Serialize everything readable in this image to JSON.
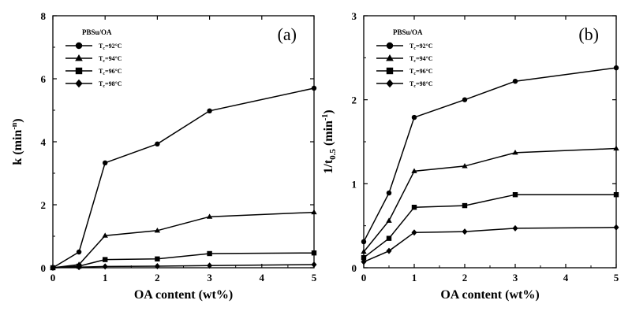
{
  "chart_data": [
    {
      "type": "line",
      "panel_label": "(a)",
      "xlabel": "OA content (wt%)",
      "ylabel": "k (min",
      "ylabel_sup": "-n",
      "ylabel_tail": ")",
      "xlim": [
        0,
        5
      ],
      "ylim": [
        0,
        8
      ],
      "xticks": [
        0,
        1,
        2,
        3,
        4,
        5
      ],
      "yticks": [
        0,
        2,
        4,
        6,
        8
      ],
      "legend_title": "PBSu/OA",
      "legend_position": "top-left",
      "x": [
        0,
        0.5,
        1,
        2,
        3,
        5
      ],
      "series": [
        {
          "name": "Tc=92°C",
          "label_main": "T",
          "label_sub": "c",
          "label_rest": "=92°C",
          "marker": "circle",
          "values": [
            0,
            0.5,
            3.33,
            3.93,
            4.98,
            5.7
          ]
        },
        {
          "name": "Tc=94°C",
          "label_main": "T",
          "label_sub": "c",
          "label_rest": "=94°C",
          "marker": "triangle",
          "values": [
            0,
            0.1,
            1.02,
            1.18,
            1.62,
            1.76
          ]
        },
        {
          "name": "Tc=96°C",
          "label_main": "T",
          "label_sub": "c",
          "label_rest": "=96°C",
          "marker": "square",
          "values": [
            0,
            0.05,
            0.26,
            0.28,
            0.45,
            0.47
          ]
        },
        {
          "name": "Tc=98°C",
          "label_main": "T",
          "label_sub": "c",
          "label_rest": "=98°C",
          "marker": "diamond",
          "values": [
            0,
            0.02,
            0.04,
            0.05,
            0.07,
            0.1
          ]
        }
      ]
    },
    {
      "type": "line",
      "panel_label": "(b)",
      "xlabel": "OA content (wt%)",
      "ylabel": "1/t",
      "ylabel_sub": "0.5",
      "ylabel_mid": " (min",
      "ylabel_sup": "-1",
      "ylabel_tail": ")",
      "xlim": [
        0,
        5
      ],
      "ylim": [
        0,
        3
      ],
      "xticks": [
        0,
        1,
        2,
        3,
        4,
        5
      ],
      "yticks": [
        0,
        1,
        2,
        3
      ],
      "legend_title": "PBSu/OA",
      "legend_position": "top-left",
      "x": [
        0,
        0.5,
        1,
        2,
        3,
        5
      ],
      "series": [
        {
          "name": "Tc=92°C",
          "label_main": "T",
          "label_sub": "c",
          "label_rest": "=92°C",
          "marker": "circle",
          "values": [
            0.31,
            0.89,
            1.79,
            2.0,
            2.22,
            2.38
          ]
        },
        {
          "name": "Tc=94°C",
          "label_main": "T",
          "label_sub": "c",
          "label_rest": "=94°C",
          "marker": "triangle",
          "values": [
            0.19,
            0.56,
            1.15,
            1.21,
            1.37,
            1.42
          ]
        },
        {
          "name": "Tc=96°C",
          "label_main": "T",
          "label_sub": "c",
          "label_rest": "=96°C",
          "marker": "square",
          "values": [
            0.12,
            0.35,
            0.72,
            0.74,
            0.87,
            0.87
          ]
        },
        {
          "name": "Tc=98°C",
          "label_main": "T",
          "label_sub": "c",
          "label_rest": "=98°C",
          "marker": "diamond",
          "values": [
            0.07,
            0.2,
            0.42,
            0.43,
            0.47,
            0.48
          ]
        }
      ]
    }
  ]
}
